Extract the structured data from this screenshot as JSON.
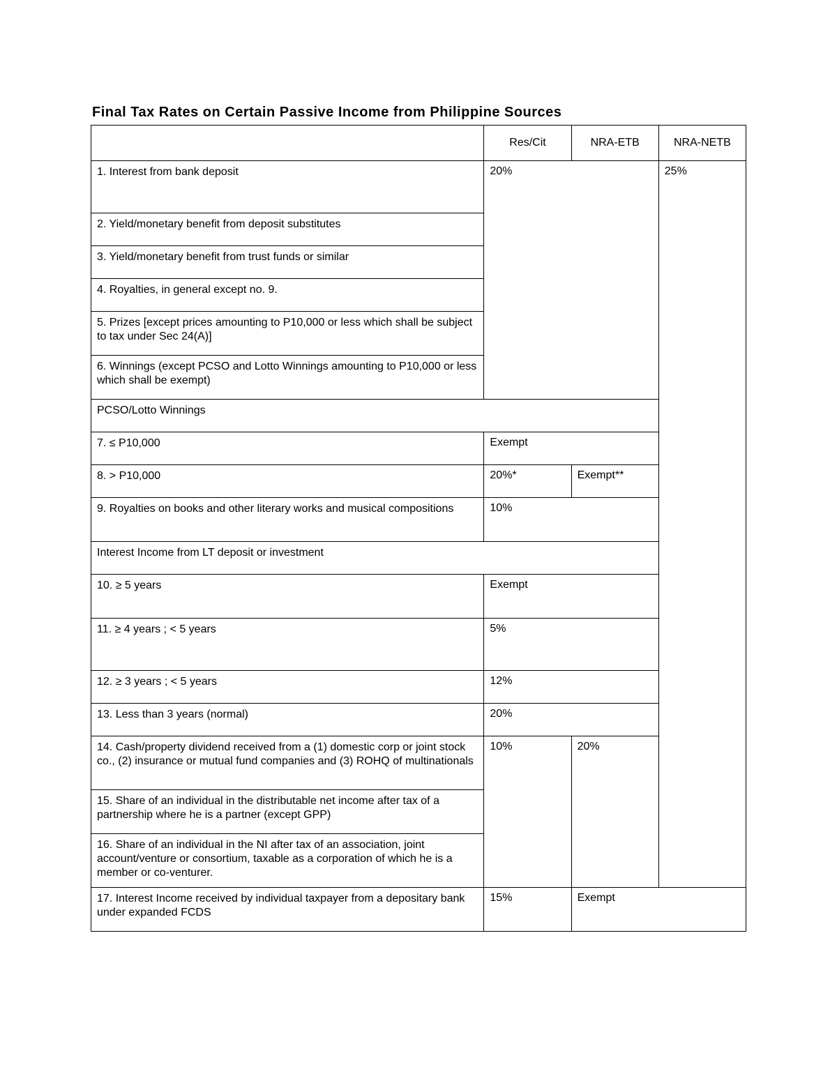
{
  "title": "Final Tax Rates on Certain Passive Income from Philippine Sources",
  "columns": {
    "blank": "",
    "resCit": "Res/Cit",
    "nraEtb": "NRA-ETB",
    "nraNetb": "NRA-NETB"
  },
  "rows": {
    "r1": "1. Interest from bank deposit",
    "r2": "2. Yield/monetary benefit from deposit substitutes",
    "r3": "3. Yield/monetary benefit from trust funds or similar",
    "r4": "4. Royalties, in general except no. 9.",
    "r5": "5. Prizes [except prices amounting to P10,000 or less which shall be subject to tax under Sec 24(A)]",
    "r6": "6. Winnings (except PCSO and Lotto Winnings amounting to P10,000 or less which shall be exempt)",
    "rPcsoHdr": "PCSO/Lotto Winnings",
    "r7": "7. ≤ P10,000",
    "r8": "8. > P10,000",
    "r9": "9. Royalties on books and other literary works and musical compositions",
    "rLtHdr": "Interest Income from LT deposit or investment",
    "r10": "10.   ≥ 5 years",
    "r11": "11.   ≥ 4 years ; < 5 years",
    "r12": "12. ≥ 3 years ; < 5 years",
    "r13": "13. Less than 3 years (normal)",
    "r14": "14. Cash/property dividend received from a (1) domestic corp or joint stock co., (2) insurance or mutual fund companies and (3) ROHQ of multinationals",
    "r15": "15. Share of an individual in the distributable net income after tax of a partnership where he is a partner (except GPP)",
    "r16": "16. Share of an individual in the NI after tax of an association, joint account/venture or consortium, taxable as a corporation of which he is a member or co-venturer.",
    "r17": "17. Interest Income received by individual taxpayer from a depositary bank under expanded FCDS"
  },
  "values": {
    "pct20": "20%",
    "pct25": "25%",
    "exempt": "Exempt",
    "pct20star": "20%*",
    "exemptStar": "Exempt**",
    "pct10small": "10%",
    "pct5": "5%",
    "pct12": "12%",
    "pct20small": "20%",
    "pct10big": "10%",
    "pct20big": "20%",
    "pct15": "15%",
    "exemptBig": "Exempt"
  },
  "style": {
    "page_bg": "#ffffff",
    "text_color": "#000000",
    "border_color": "#000000",
    "title_fontsize": 20,
    "body_fontsize": 16,
    "big_fontsize": 34,
    "med_fontsize": 26,
    "font_family": "Arial"
  }
}
